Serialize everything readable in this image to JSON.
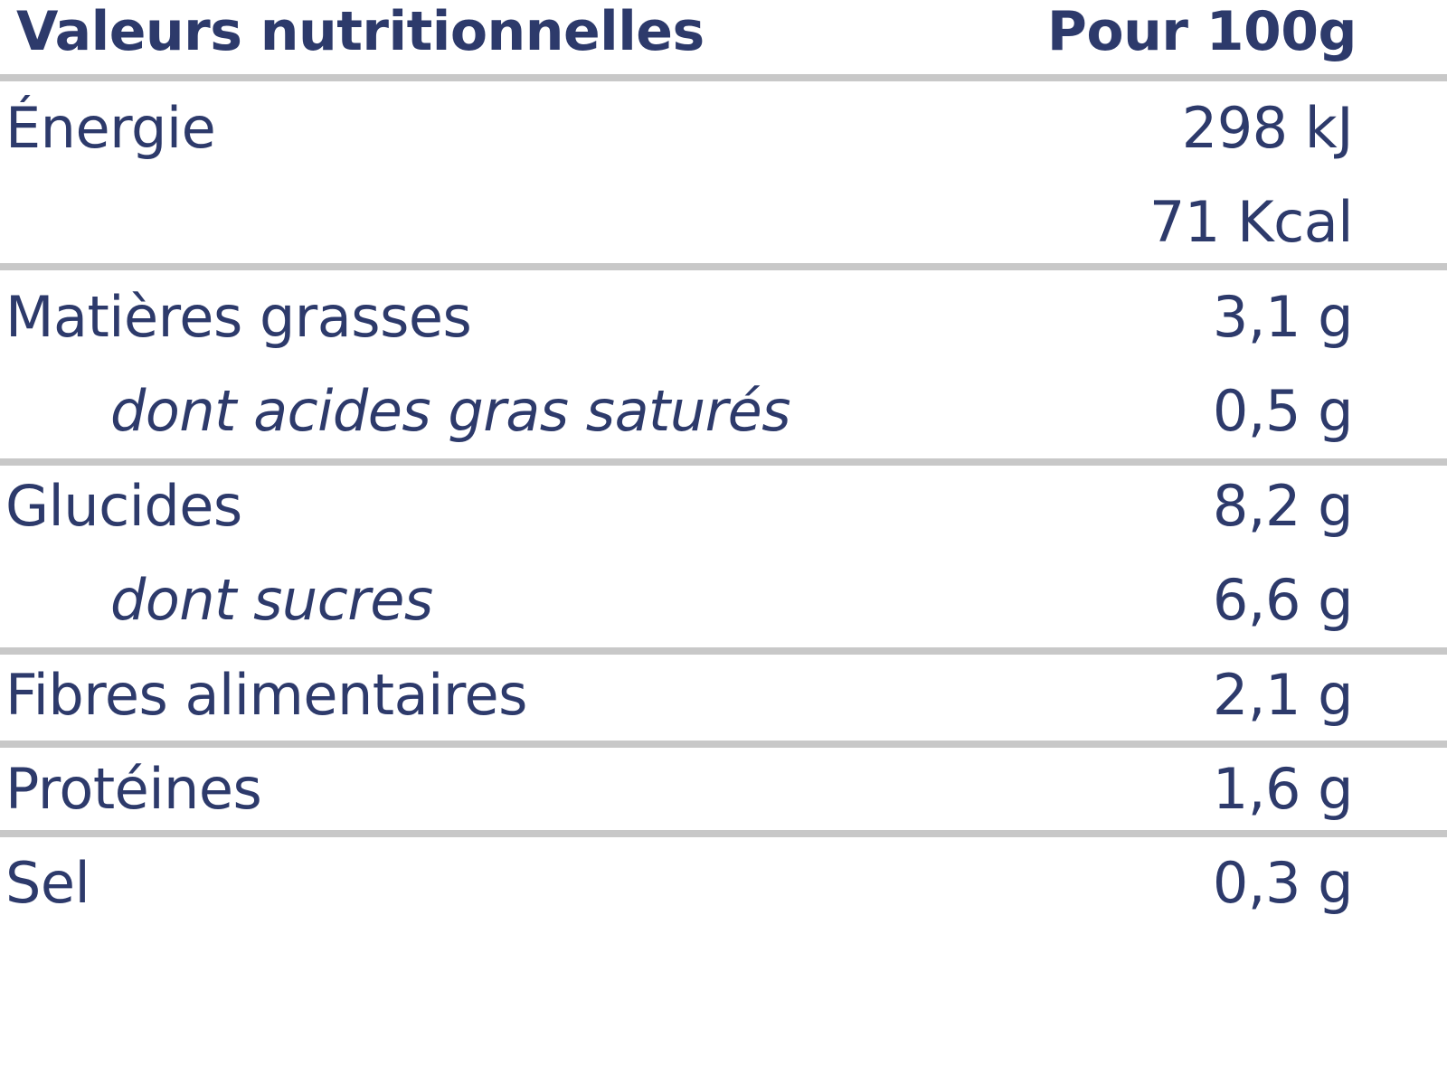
{
  "header": {
    "title": "Valeurs nutritionnelles",
    "per": "Pour 100g"
  },
  "rows": [
    {
      "label": "Énergie",
      "value": "298 kJ"
    },
    {
      "label": "",
      "value": "71 Kcal"
    },
    {
      "label": "Matières grasses",
      "value": "3,1 g"
    },
    {
      "label": "dont acides gras saturés",
      "value": "0,5 g"
    },
    {
      "label": "Glucides",
      "value": "8,2 g"
    },
    {
      "label": "dont sucres",
      "value": "6,6 g"
    },
    {
      "label": "Fibres alimentaires",
      "value": "2,1 g"
    },
    {
      "label": "Protéines",
      "value": "1,6 g"
    },
    {
      "label": "Sel",
      "value": "0,3 g"
    }
  ],
  "colors": {
    "text": "#2d3a6b",
    "separator": "#c8c8c8"
  }
}
